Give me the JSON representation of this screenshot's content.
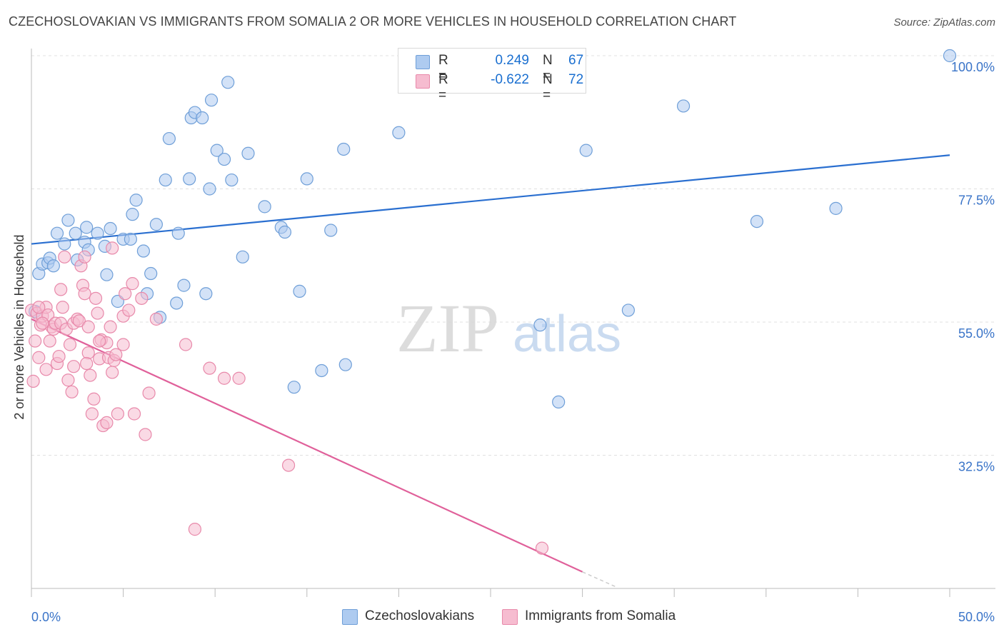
{
  "header": {
    "title": "CZECHOSLOVAKIAN VS IMMIGRANTS FROM SOMALIA 2 OR MORE VEHICLES IN HOUSEHOLD CORRELATION CHART",
    "source": "Source: ZipAtlas.com"
  },
  "legend": {
    "series1": {
      "r_label": "R =",
      "r_value": "0.249",
      "n_label": "N =",
      "n_value": "67"
    },
    "series2": {
      "r_label": "R =",
      "r_value": "-0.622",
      "n_label": "N =",
      "n_value": "72"
    }
  },
  "bottom_legend": {
    "series1": "Czechoslovakians",
    "series2": "Immigrants from Somalia"
  },
  "watermark": {
    "zip": "ZIP",
    "atlas": "atlas"
  },
  "colors": {
    "blue_fill": "#aecbf0",
    "blue_stroke": "#6f9fd8",
    "blue_line": "#2a6fd0",
    "pink_fill": "#f6bcd0",
    "pink_stroke": "#e889aa",
    "pink_line": "#e0609a",
    "tick_label": "#3a74c8",
    "grid": "#e0e0e0"
  },
  "chart_data": {
    "type": "scatter",
    "title": "CZECHOSLOVAKIAN VS IMMIGRANTS FROM SOMALIA 2 OR MORE VEHICLES IN HOUSEHOLD CORRELATION CHART",
    "xlabel": "",
    "ylabel": "2 or more Vehicles in Household",
    "xlim": [
      0,
      50
    ],
    "ylim": [
      10,
      100
    ],
    "x_tick_labels": [
      {
        "value": 0,
        "label": "0.0%"
      },
      {
        "value": 50,
        "label": "50.0%"
      }
    ],
    "y_ticks": [
      {
        "value": 100,
        "label": "100.0%"
      },
      {
        "value": 77.5,
        "label": "77.5%"
      },
      {
        "value": 55,
        "label": "55.0%"
      },
      {
        "value": 32.5,
        "label": "32.5%"
      }
    ],
    "x_minor_ticks": [
      0,
      5,
      10,
      15,
      20,
      25,
      30,
      35,
      40,
      45,
      50
    ],
    "grid": true,
    "series": [
      {
        "name": "Czechoslovakians",
        "color": "#aecbf0",
        "points": [
          [
            0.2,
            56.8
          ],
          [
            0.4,
            63.2
          ],
          [
            0.6,
            64.8
          ],
          [
            0.9,
            65
          ],
          [
            1,
            65.8
          ],
          [
            1.2,
            64.5
          ],
          [
            1.4,
            70
          ],
          [
            1.8,
            68.2
          ],
          [
            2,
            72.2
          ],
          [
            2.4,
            70
          ],
          [
            2.5,
            65.5
          ],
          [
            2.9,
            68.5
          ],
          [
            3,
            71
          ],
          [
            3.1,
            67.2
          ],
          [
            3.6,
            70
          ],
          [
            4,
            67.8
          ],
          [
            4.1,
            63
          ],
          [
            4.3,
            70.8
          ],
          [
            4.7,
            58.5
          ],
          [
            5,
            69
          ],
          [
            5.4,
            69
          ],
          [
            5.5,
            73.2
          ],
          [
            5.7,
            75.6
          ],
          [
            6.1,
            67
          ],
          [
            6.3,
            59.8
          ],
          [
            6.5,
            63.2
          ],
          [
            6.8,
            71.5
          ],
          [
            7,
            55.8
          ],
          [
            7.3,
            79
          ],
          [
            7.5,
            86
          ],
          [
            7.9,
            58.2
          ],
          [
            8,
            70
          ],
          [
            8.3,
            61.2
          ],
          [
            8.6,
            79.2
          ],
          [
            8.7,
            89.5
          ],
          [
            8.9,
            90.4
          ],
          [
            9.3,
            89.5
          ],
          [
            9.5,
            59.8
          ],
          [
            9.7,
            77.5
          ],
          [
            9.8,
            92.5
          ],
          [
            10.1,
            84
          ],
          [
            10.5,
            82.5
          ],
          [
            10.7,
            95.5
          ],
          [
            10.9,
            79
          ],
          [
            11.5,
            66
          ],
          [
            11.8,
            83.5
          ],
          [
            12.7,
            74.5
          ],
          [
            13.6,
            71
          ],
          [
            13.8,
            70.2
          ],
          [
            14.3,
            44
          ],
          [
            14.6,
            60.2
          ],
          [
            15,
            79.2
          ],
          [
            15.8,
            46.8
          ],
          [
            16.3,
            70.5
          ],
          [
            17,
            84.2
          ],
          [
            17.1,
            47.8
          ],
          [
            20,
            87
          ],
          [
            23.2,
            100
          ],
          [
            25,
            100
          ],
          [
            27.7,
            54.5
          ],
          [
            28.7,
            41.5
          ],
          [
            30.2,
            84
          ],
          [
            32.5,
            57
          ],
          [
            35.5,
            91.5
          ],
          [
            39.5,
            72
          ],
          [
            43.8,
            74.2
          ],
          [
            50,
            100
          ]
        ]
      },
      {
        "name": "Immigrants from Somalia",
        "color": "#f6bcd0",
        "points": [
          [
            0,
            57
          ],
          [
            0.1,
            45
          ],
          [
            0.2,
            51.8
          ],
          [
            0.3,
            56.5
          ],
          [
            0.4,
            49
          ],
          [
            0.5,
            54.5
          ],
          [
            0.6,
            56
          ],
          [
            0.8,
            47
          ],
          [
            0.8,
            57.5
          ],
          [
            0.9,
            56.2
          ],
          [
            1,
            51.8
          ],
          [
            1.1,
            54.2
          ],
          [
            1.2,
            53.8
          ],
          [
            1.3,
            54.8
          ],
          [
            1.4,
            48
          ],
          [
            1.5,
            49.2
          ],
          [
            1.6,
            54.8
          ],
          [
            1.7,
            57.5
          ],
          [
            1.9,
            53.8
          ],
          [
            2,
            45.2
          ],
          [
            2.1,
            51.2
          ],
          [
            2.2,
            43.2
          ],
          [
            2.3,
            54.8
          ],
          [
            2.5,
            55.5
          ],
          [
            2.6,
            55.2
          ],
          [
            2.7,
            64.5
          ],
          [
            2.8,
            61.2
          ],
          [
            2.9,
            59.8
          ],
          [
            3.1,
            49.8
          ],
          [
            3.1,
            54.2
          ],
          [
            3.2,
            46
          ],
          [
            3.3,
            39.5
          ],
          [
            3.4,
            42
          ],
          [
            3.5,
            59
          ],
          [
            3.6,
            56.5
          ],
          [
            3.7,
            48.8
          ],
          [
            3.8,
            52
          ],
          [
            3.9,
            37.5
          ],
          [
            4.1,
            51.5
          ],
          [
            4.1,
            38
          ],
          [
            4.2,
            49
          ],
          [
            4.3,
            54.2
          ],
          [
            4.4,
            46.5
          ],
          [
            4.5,
            48.5
          ],
          [
            4.6,
            49.5
          ],
          [
            4.7,
            39.5
          ],
          [
            5,
            51.2
          ],
          [
            5,
            56
          ],
          [
            5.1,
            59.8
          ],
          [
            5.3,
            57
          ],
          [
            5.5,
            61.5
          ],
          [
            5.6,
            39.5
          ],
          [
            6,
            59
          ],
          [
            6.2,
            36
          ],
          [
            6.4,
            43
          ],
          [
            6.8,
            55.5
          ],
          [
            8.4,
            51.2
          ],
          [
            8.9,
            20
          ],
          [
            9.7,
            47.2
          ],
          [
            10.5,
            45.5
          ],
          [
            11.3,
            45.5
          ],
          [
            14,
            30.8
          ],
          [
            27.8,
            16.8
          ],
          [
            0.6,
            54.8
          ],
          [
            2.3,
            47.5
          ],
          [
            1.8,
            66
          ],
          [
            2.9,
            66
          ],
          [
            0.4,
            57.5
          ],
          [
            3,
            48
          ],
          [
            1.6,
            60.5
          ],
          [
            4.4,
            67.5
          ],
          [
            3.7,
            51.8
          ]
        ]
      }
    ],
    "trendlines": [
      {
        "series": "Czechoslovakians",
        "x": [
          0,
          50
        ],
        "y": [
          68.2,
          83.2
        ],
        "style": "solid"
      },
      {
        "series": "Immigrants from Somalia",
        "x": [
          0,
          30
        ],
        "y": [
          55.5,
          12.8
        ],
        "style": "solid"
      },
      {
        "series": "Immigrants from Somalia",
        "x": [
          30,
          31.8
        ],
        "y": [
          12.8,
          10.3
        ],
        "style": "dashed"
      }
    ]
  }
}
